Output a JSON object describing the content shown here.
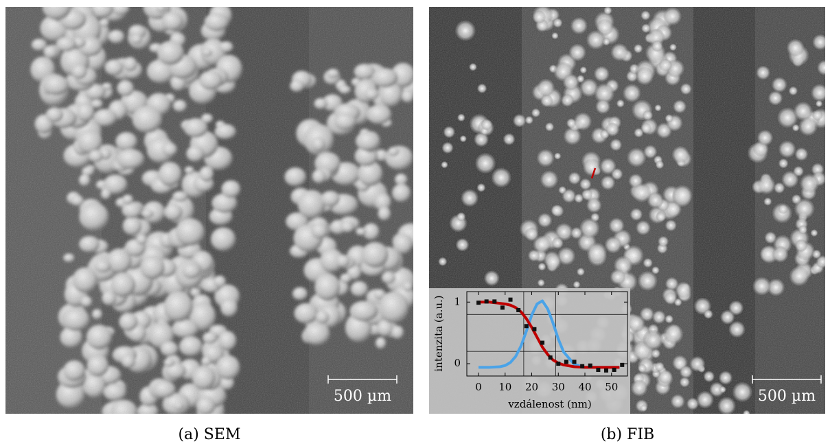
{
  "panels": [
    {
      "caption": "(a) SEM",
      "scale_bar": "500 µm"
    },
    {
      "caption": "(b) FIB",
      "scale_bar": "500 µm"
    }
  ],
  "chart_data": {
    "type": "line",
    "x_label": "vzdálenost (nm)",
    "y_label": "intenzita (a.u.)",
    "x": [
      0,
      4,
      8,
      10,
      12,
      14,
      16,
      18,
      20,
      22,
      24,
      26,
      28,
      30,
      32,
      36,
      40,
      46,
      53
    ],
    "series": [
      {
        "color": "#c00000",
        "values": [
          1.0,
          1.0,
          0.98,
          0.97,
          0.95,
          0.91,
          0.84,
          0.73,
          0.59,
          0.43,
          0.27,
          0.15,
          0.06,
          0.01,
          -0.02,
          -0.05,
          -0.06,
          -0.06,
          -0.06
        ]
      },
      {
        "color": "#4aa3e8",
        "values": [
          -0.06,
          -0.06,
          -0.05,
          -0.03,
          0.02,
          0.12,
          0.29,
          0.53,
          0.79,
          0.97,
          1.02,
          0.89,
          0.66,
          0.4,
          0.19,
          -0.01,
          -0.06,
          -0.06,
          -0.06
        ]
      }
    ],
    "points": {
      "color": "#111111",
      "x": [
        0,
        3,
        6,
        9,
        12,
        15,
        18,
        21,
        24,
        27,
        30,
        33,
        36,
        39,
        42,
        45,
        48,
        51,
        54
      ],
      "values": [
        0.99,
        1.01,
        1.01,
        0.91,
        1.04,
        0.87,
        0.61,
        0.56,
        0.34,
        0.1,
        0,
        0.03,
        0.03,
        -0.04,
        -0.03,
        -0.1,
        -0.11,
        -0.1,
        -0.02
      ]
    },
    "ref_lines": {
      "y": [
        0.8,
        0.2
      ],
      "x": [
        17,
        29
      ]
    },
    "xlim": [
      -4.4,
      56
    ],
    "ylim": [
      -0.2,
      1.17
    ],
    "xticks": [
      0,
      10,
      20,
      30,
      40,
      50
    ],
    "yticks": [
      0,
      1
    ]
  }
}
